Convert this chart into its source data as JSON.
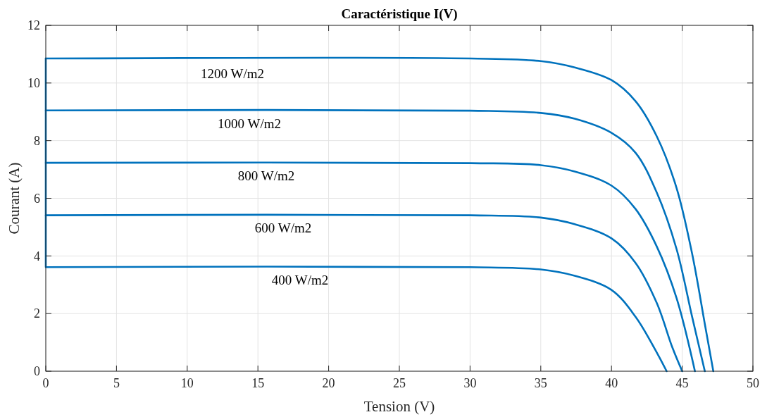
{
  "chart_data": {
    "type": "line",
    "title": "Caractéristique I(V)",
    "xlabel": "Tension (V)",
    "ylabel": "Courant (A)",
    "xlim": [
      0,
      50
    ],
    "xticks": [
      0,
      5,
      10,
      15,
      20,
      25,
      30,
      35,
      40,
      45,
      50
    ],
    "ylim": [
      0,
      12
    ],
    "yticks": [
      0,
      2,
      4,
      6,
      8,
      10,
      12
    ],
    "grid": true,
    "marker": "none",
    "line_style": "solid",
    "series": [
      {
        "name": "1200 W/m2",
        "color": "#0072bd",
        "x": [
          0,
          30,
          35,
          37.4,
          40,
          41.7,
          43.2,
          44.6,
          45.7,
          46.6,
          47.2
        ],
        "values": [
          10.85,
          10.85,
          10.76,
          10.54,
          10.1,
          9.37,
          8.15,
          6.36,
          4.08,
          1.64,
          0
        ]
      },
      {
        "name": "1000 W/m2",
        "color": "#0072bd",
        "x": [
          0,
          0,
          30,
          35,
          37.4,
          40,
          41.7,
          43.2,
          44.6,
          45.7,
          46.6
        ],
        "values": [
          10.85,
          9.05,
          9.04,
          8.96,
          8.76,
          8.27,
          7.58,
          6.2,
          4.24,
          1.89,
          0
        ]
      },
      {
        "name": "800 W/m2",
        "color": "#0072bd",
        "x": [
          0,
          0,
          30,
          35,
          37.4,
          40,
          41.7,
          43.2,
          44.6,
          45.9
        ],
        "values": [
          9.05,
          7.23,
          7.22,
          7.15,
          6.93,
          6.44,
          5.63,
          4.33,
          2.54,
          0
        ]
      },
      {
        "name": "600 W/m2",
        "color": "#0072bd",
        "x": [
          0,
          0,
          30,
          35,
          37.4,
          40,
          41.7,
          43.2,
          44.3,
          45
        ],
        "values": [
          7.23,
          5.41,
          5.41,
          5.33,
          5.1,
          4.61,
          3.76,
          2.37,
          0.83,
          0
        ]
      },
      {
        "name": "400 W/m2",
        "color": "#0072bd",
        "x": [
          0,
          0,
          30,
          35,
          37.4,
          40,
          41.7,
          43,
          43.9
        ],
        "values": [
          5.41,
          3.61,
          3.61,
          3.53,
          3.31,
          2.82,
          1.89,
          0.83,
          0
        ]
      }
    ]
  }
}
